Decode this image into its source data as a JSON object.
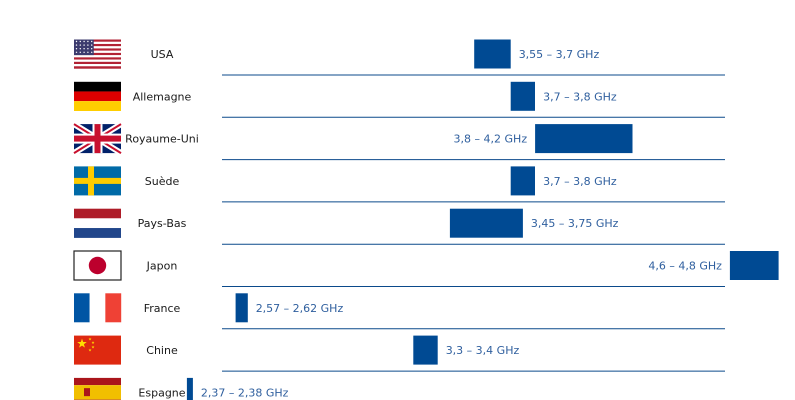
{
  "chart_data": {
    "type": "bar",
    "variant": "floating-range",
    "title": "",
    "xlabel": "",
    "ylabel": "",
    "unit": "GHz",
    "xlim": [
      2.35,
      5.0
    ],
    "grid": false,
    "bar_color": "#004a93",
    "label_color": "#2f5f9e",
    "divider_color": "#0b4a8b",
    "categories": [
      "USA",
      "Allemagne",
      "Royaume-Uni",
      "Suède",
      "Pays-Bas",
      "Japon",
      "France",
      "Chine",
      "Espagne"
    ],
    "ranges": [
      {
        "country": "USA",
        "low": 3.55,
        "high": 3.7,
        "label": "3,55 – 3,7 GHz",
        "flag": "flag-usa-icon"
      },
      {
        "country": "Allemagne",
        "low": 3.7,
        "high": 3.8,
        "label": "3,7 – 3,8 GHz",
        "flag": "flag-germany-icon"
      },
      {
        "country": "Royaume-Uni",
        "low": 3.8,
        "high": 4.2,
        "label": "3,8 – 4,2 GHz",
        "flag": "flag-uk-icon"
      },
      {
        "country": "Suède",
        "low": 3.7,
        "high": 3.8,
        "label": "3,7 – 3,8 GHz",
        "flag": "flag-sweden-icon"
      },
      {
        "country": "Pays-Bas",
        "low": 3.45,
        "high": 3.75,
        "label": "3,45 – 3,75 GHz",
        "flag": "flag-netherlands-icon"
      },
      {
        "country": "Japon",
        "low": 4.6,
        "high": 4.8,
        "label": "4,6 – 4,8 GHz",
        "flag": "flag-japan-icon"
      },
      {
        "country": "France",
        "low": 2.57,
        "high": 2.62,
        "label": "2,57 – 2,62 GHz",
        "flag": "flag-france-icon"
      },
      {
        "country": "Chine",
        "low": 3.3,
        "high": 3.4,
        "label": "3,3 – 3,4 GHz",
        "flag": "flag-china-icon"
      },
      {
        "country": "Espagne",
        "low": 2.37,
        "high": 2.38,
        "label": "2,37 – 2,38 GHz",
        "flag": "flag-spain-icon"
      }
    ]
  }
}
